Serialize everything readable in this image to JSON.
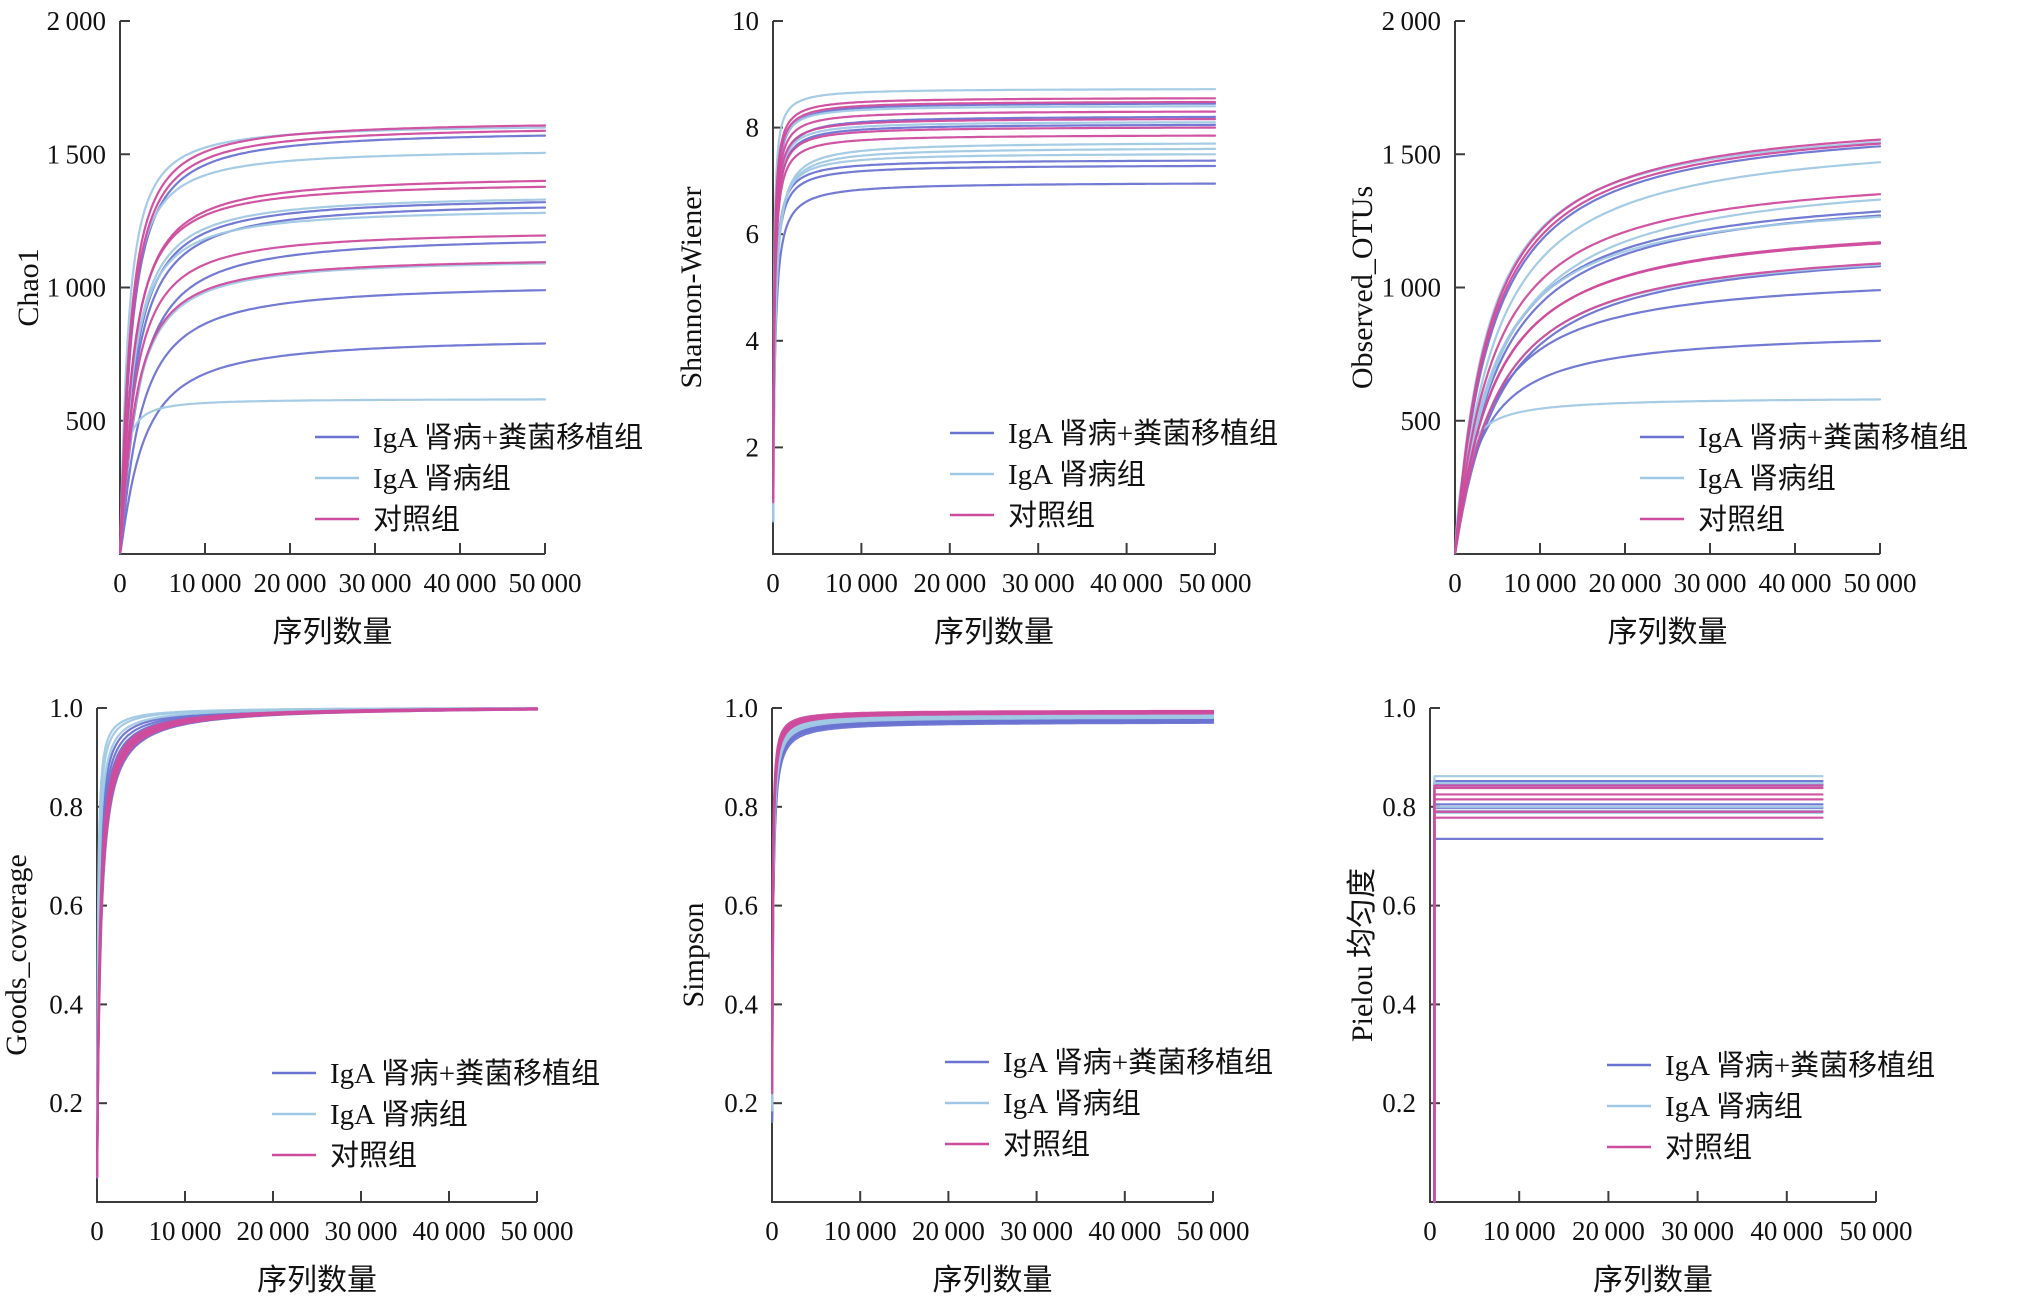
{
  "figure": {
    "description": "Alpha diversity rarefaction curves, 6 panels",
    "background": "#ffffff",
    "axis_color": "#3c3c3c",
    "text_color": "#111111"
  },
  "groups": [
    {
      "label": "IgA 肾病+粪菌移植组",
      "color": "#6a73d1"
    },
    {
      "label": "IgA 肾病组",
      "color": "#a0c8e4"
    },
    {
      "label": "对照组",
      "color": "#ce4b9d"
    }
  ],
  "xaxis": {
    "label": "序列数量",
    "min": 0,
    "max": 50000,
    "tick_values": [
      0,
      10000,
      20000,
      30000,
      40000,
      50000
    ],
    "tick_labels": [
      "0",
      "10 000",
      "20 000",
      "30 000",
      "40 000",
      "50 000"
    ]
  },
  "chart_data": [
    {
      "type": "line",
      "name": "chao1",
      "ylabel": "Chao1",
      "xlabel": "序列数量",
      "ylim": [
        0,
        2000
      ],
      "ytick_values": [
        500,
        1000,
        1500,
        2000
      ],
      "ytick_labels": [
        "500",
        "1 000",
        "1 500",
        "2 000"
      ],
      "grid": false,
      "legend_position": "inside-lower-right",
      "model": {
        "kind": "saturating",
        "exponent": 1.18,
        "x_start": 20,
        "x_end": 50000
      },
      "series": [
        {
          "group": 0,
          "end": 1570,
          "k": 1300
        },
        {
          "group": 0,
          "end": 1320,
          "k": 1600
        },
        {
          "group": 0,
          "end": 1300,
          "k": 1750
        },
        {
          "group": 0,
          "end": 1170,
          "k": 2100
        },
        {
          "group": 0,
          "end": 990,
          "k": 2300
        },
        {
          "group": 0,
          "end": 790,
          "k": 2600
        },
        {
          "group": 1,
          "end": 1600,
          "k": 900
        },
        {
          "group": 1,
          "end": 1505,
          "k": 1050
        },
        {
          "group": 1,
          "end": 1330,
          "k": 1500
        },
        {
          "group": 1,
          "end": 1280,
          "k": 1400
        },
        {
          "group": 1,
          "end": 1090,
          "k": 1800
        },
        {
          "group": 1,
          "end": 580,
          "k": 480
        },
        {
          "group": 2,
          "end": 1608,
          "k": 1150
        },
        {
          "group": 2,
          "end": 1588,
          "k": 1250
        },
        {
          "group": 2,
          "end": 1400,
          "k": 1500
        },
        {
          "group": 2,
          "end": 1378,
          "k": 1430
        },
        {
          "group": 2,
          "end": 1195,
          "k": 1650
        },
        {
          "group": 2,
          "end": 1095,
          "k": 1750
        }
      ]
    },
    {
      "type": "line",
      "name": "shannon-wiener",
      "ylabel": "Shannon-Wiener",
      "xlabel": "序列数量",
      "ylim": [
        0,
        10
      ],
      "ytick_values": [
        2,
        4,
        6,
        8,
        10
      ],
      "ytick_labels": [
        "2",
        "4",
        "6",
        "8",
        "10"
      ],
      "grid": false,
      "legend_position": "inside-lower-right",
      "model": {
        "kind": "saturating",
        "exponent": 1.0,
        "x_start": 20,
        "x_end": 50000
      },
      "series": [
        {
          "group": 0,
          "end": 8.45,
          "k": 120
        },
        {
          "group": 0,
          "end": 8.2,
          "k": 150
        },
        {
          "group": 0,
          "end": 8.05,
          "k": 140
        },
        {
          "group": 0,
          "end": 7.38,
          "k": 160
        },
        {
          "group": 0,
          "end": 7.28,
          "k": 170
        },
        {
          "group": 0,
          "end": 6.95,
          "k": 210
        },
        {
          "group": 1,
          "end": 8.72,
          "k": 85
        },
        {
          "group": 1,
          "end": 8.4,
          "k": 105
        },
        {
          "group": 1,
          "end": 8.1,
          "k": 130
        },
        {
          "group": 1,
          "end": 7.7,
          "k": 230
        },
        {
          "group": 1,
          "end": 7.6,
          "k": 215
        },
        {
          "group": 1,
          "end": 7.5,
          "k": 185
        },
        {
          "group": 2,
          "end": 8.55,
          "k": 105
        },
        {
          "group": 2,
          "end": 8.48,
          "k": 112
        },
        {
          "group": 2,
          "end": 8.3,
          "k": 122
        },
        {
          "group": 2,
          "end": 8.16,
          "k": 128
        },
        {
          "group": 2,
          "end": 8.0,
          "k": 134
        },
        {
          "group": 2,
          "end": 7.85,
          "k": 142
        }
      ]
    },
    {
      "type": "line",
      "name": "observed-otus",
      "ylabel": "Observed_OTUs",
      "xlabel": "序列数量",
      "ylim": [
        0,
        2000
      ],
      "ytick_values": [
        500,
        1000,
        1500,
        2000
      ],
      "ytick_labels": [
        "500",
        "1 000",
        "1 500",
        "2 000"
      ],
      "grid": false,
      "legend_position": "inside-lower-right",
      "model": {
        "kind": "saturating",
        "exponent": 1.05,
        "x_start": 20,
        "x_end": 50000
      },
      "series": [
        {
          "group": 0,
          "end": 1530,
          "k": 4200
        },
        {
          "group": 0,
          "end": 1285,
          "k": 4600
        },
        {
          "group": 0,
          "end": 1270,
          "k": 4900
        },
        {
          "group": 0,
          "end": 1080,
          "k": 5200
        },
        {
          "group": 0,
          "end": 990,
          "k": 4000
        },
        {
          "group": 0,
          "end": 800,
          "k": 3000
        },
        {
          "group": 1,
          "end": 1545,
          "k": 3700
        },
        {
          "group": 1,
          "end": 1470,
          "k": 4600
        },
        {
          "group": 1,
          "end": 1330,
          "k": 5100
        },
        {
          "group": 1,
          "end": 1265,
          "k": 4300
        },
        {
          "group": 1,
          "end": 1085,
          "k": 4800
        },
        {
          "group": 1,
          "end": 580,
          "k": 900
        },
        {
          "group": 2,
          "end": 1555,
          "k": 3900
        },
        {
          "group": 2,
          "end": 1540,
          "k": 4050
        },
        {
          "group": 2,
          "end": 1350,
          "k": 4400
        },
        {
          "group": 2,
          "end": 1170,
          "k": 4600
        },
        {
          "group": 2,
          "end": 1165,
          "k": 4500
        },
        {
          "group": 2,
          "end": 1090,
          "k": 4900
        }
      ]
    },
    {
      "type": "line",
      "name": "goods-coverage",
      "ylabel": "Goods_coverage",
      "xlabel": "序列数量",
      "ylim": [
        0,
        1.0
      ],
      "ytick_values": [
        0.2,
        0.4,
        0.6,
        0.8,
        1.0
      ],
      "ytick_labels": [
        "0.2",
        "0.4",
        "0.6",
        "0.8",
        "1.0"
      ],
      "grid": false,
      "legend_position": "inside-lower-right",
      "model": {
        "kind": "saturating",
        "exponent": 1.0,
        "x_start": 20,
        "x_end": 50000
      },
      "series": [
        {
          "group": 0,
          "end": 0.999,
          "k": 180
        },
        {
          "group": 0,
          "end": 0.999,
          "k": 260
        },
        {
          "group": 0,
          "end": 0.998,
          "k": 300
        },
        {
          "group": 0,
          "end": 0.998,
          "k": 340
        },
        {
          "group": 0,
          "end": 0.999,
          "k": 220
        },
        {
          "group": 0,
          "end": 0.997,
          "k": 390
        },
        {
          "group": 1,
          "end": 1.0,
          "k": 110
        },
        {
          "group": 1,
          "end": 0.999,
          "k": 150
        },
        {
          "group": 1,
          "end": 0.999,
          "k": 290
        },
        {
          "group": 1,
          "end": 0.998,
          "k": 330
        },
        {
          "group": 1,
          "end": 0.998,
          "k": 360
        },
        {
          "group": 1,
          "end": 0.9995,
          "k": 85
        },
        {
          "group": 2,
          "end": 0.999,
          "k": 280
        },
        {
          "group": 2,
          "end": 0.999,
          "k": 305
        },
        {
          "group": 2,
          "end": 0.998,
          "k": 320
        },
        {
          "group": 2,
          "end": 0.998,
          "k": 350
        },
        {
          "group": 2,
          "end": 0.997,
          "k": 370
        },
        {
          "group": 2,
          "end": 0.998,
          "k": 335
        }
      ]
    },
    {
      "type": "line",
      "name": "simpson",
      "ylabel": "Simpson",
      "xlabel": "序列数量",
      "ylim": [
        0,
        1.0
      ],
      "ytick_values": [
        0.2,
        0.4,
        0.6,
        0.8,
        1.0
      ],
      "ytick_labels": [
        "0.2",
        "0.4",
        "0.6",
        "0.8",
        "1.0"
      ],
      "grid": false,
      "legend_position": "inside-lower-right",
      "model": {
        "kind": "saturating",
        "exponent": 1.0,
        "x_start": 20,
        "x_end": 50000
      },
      "series": [
        {
          "group": 0,
          "end": 0.978,
          "k": 70
        },
        {
          "group": 0,
          "end": 0.975,
          "k": 80
        },
        {
          "group": 0,
          "end": 0.972,
          "k": 90
        },
        {
          "group": 0,
          "end": 0.97,
          "k": 100
        },
        {
          "group": 0,
          "end": 0.976,
          "k": 85
        },
        {
          "group": 0,
          "end": 0.974,
          "k": 95
        },
        {
          "group": 1,
          "end": 0.988,
          "k": 58
        },
        {
          "group": 1,
          "end": 0.986,
          "k": 68
        },
        {
          "group": 1,
          "end": 0.984,
          "k": 74
        },
        {
          "group": 1,
          "end": 0.982,
          "k": 80
        },
        {
          "group": 1,
          "end": 0.98,
          "k": 86
        },
        {
          "group": 1,
          "end": 0.985,
          "k": 64
        },
        {
          "group": 2,
          "end": 0.994,
          "k": 52
        },
        {
          "group": 2,
          "end": 0.993,
          "k": 58
        },
        {
          "group": 2,
          "end": 0.992,
          "k": 61
        },
        {
          "group": 2,
          "end": 0.991,
          "k": 64
        },
        {
          "group": 2,
          "end": 0.99,
          "k": 67
        },
        {
          "group": 2,
          "end": 0.989,
          "k": 70
        }
      ]
    },
    {
      "type": "line",
      "name": "pielou",
      "ylabel": "Pielou 均匀度",
      "xlabel": "序列数量",
      "ylim": [
        0,
        1.0
      ],
      "ytick_values": [
        0.2,
        0.4,
        0.6,
        0.8,
        1.0
      ],
      "ytick_labels": [
        "0.2",
        "0.4",
        "0.6",
        "0.8",
        "1.0"
      ],
      "grid": false,
      "legend_position": "inside-lower-right",
      "model": {
        "kind": "flat",
        "x_start": 500,
        "x_end": 44000
      },
      "series": [
        {
          "group": 0,
          "end": 0.852
        },
        {
          "group": 0,
          "end": 0.845
        },
        {
          "group": 0,
          "end": 0.805
        },
        {
          "group": 0,
          "end": 0.798
        },
        {
          "group": 0,
          "end": 0.79
        },
        {
          "group": 0,
          "end": 0.735
        },
        {
          "group": 1,
          "end": 0.862
        },
        {
          "group": 1,
          "end": 0.848
        },
        {
          "group": 1,
          "end": 0.84
        },
        {
          "group": 1,
          "end": 0.8
        },
        {
          "group": 1,
          "end": 0.792
        },
        {
          "group": 1,
          "end": 0.788
        },
        {
          "group": 2,
          "end": 0.843
        },
        {
          "group": 2,
          "end": 0.838
        },
        {
          "group": 2,
          "end": 0.825
        },
        {
          "group": 2,
          "end": 0.815
        },
        {
          "group": 2,
          "end": 0.79
        },
        {
          "group": 2,
          "end": 0.778
        }
      ]
    }
  ]
}
